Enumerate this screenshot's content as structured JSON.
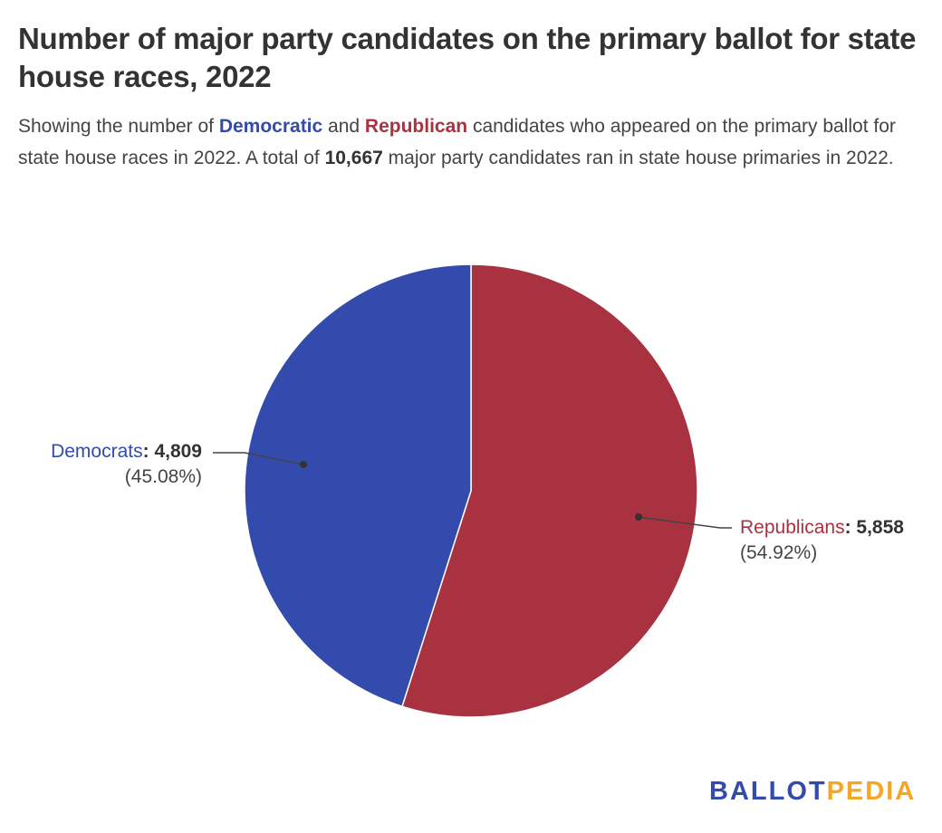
{
  "title": "Number of major party candidates on the primary ballot for state house races, 2022",
  "subtitle": {
    "t1": "Showing the number of ",
    "dem": "Democratic",
    "t2": " and ",
    "rep": "Republican",
    "t3": " candidates who appeared on the primary ballot for state house races in 2022. A total of ",
    "total": "10,667",
    "t4": " major party candidates ran in state house primaries in 2022."
  },
  "chart_data": {
    "type": "pie",
    "slices": [
      {
        "name": "Republicans",
        "value": 5858,
        "value_label": "5,858",
        "percent_label": "(54.92%)",
        "color": "#a8323f"
      },
      {
        "name": "Democrats",
        "value": 4809,
        "value_label": "4,809",
        "percent_label": "(45.08%)",
        "color": "#334bac"
      }
    ]
  },
  "logo": {
    "part1": "BALLOT",
    "part2": "PEDIA",
    "color1": "#334bac",
    "color2": "#f5a623"
  }
}
